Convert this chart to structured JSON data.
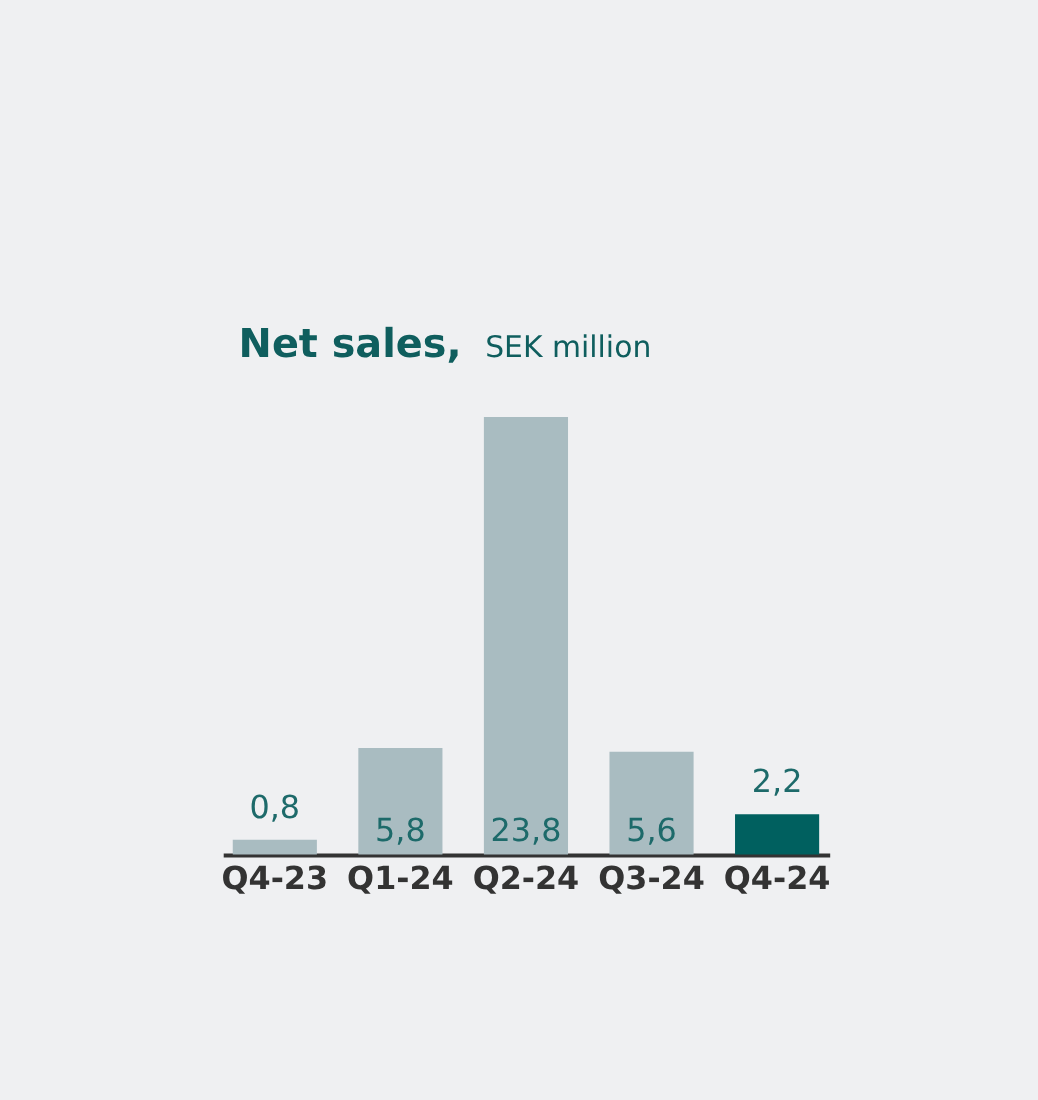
{
  "chart_data": {
    "type": "bar",
    "title": "Net sales,",
    "subtitle": "SEK million",
    "categories": [
      "Q4-23",
      "Q1-24",
      "Q2-24",
      "Q3-24",
      "Q4-24"
    ],
    "values": [
      0.8,
      5.8,
      23.8,
      5.6,
      2.2
    ],
    "colors": [
      "#a9bcc1",
      "#a9bcc1",
      "#a9bcc1",
      "#a9bcc1",
      "#00605f"
    ],
    "value_labels": [
      "0,8",
      "5,8",
      "23,8",
      "5,6",
      "2,2"
    ]
  }
}
